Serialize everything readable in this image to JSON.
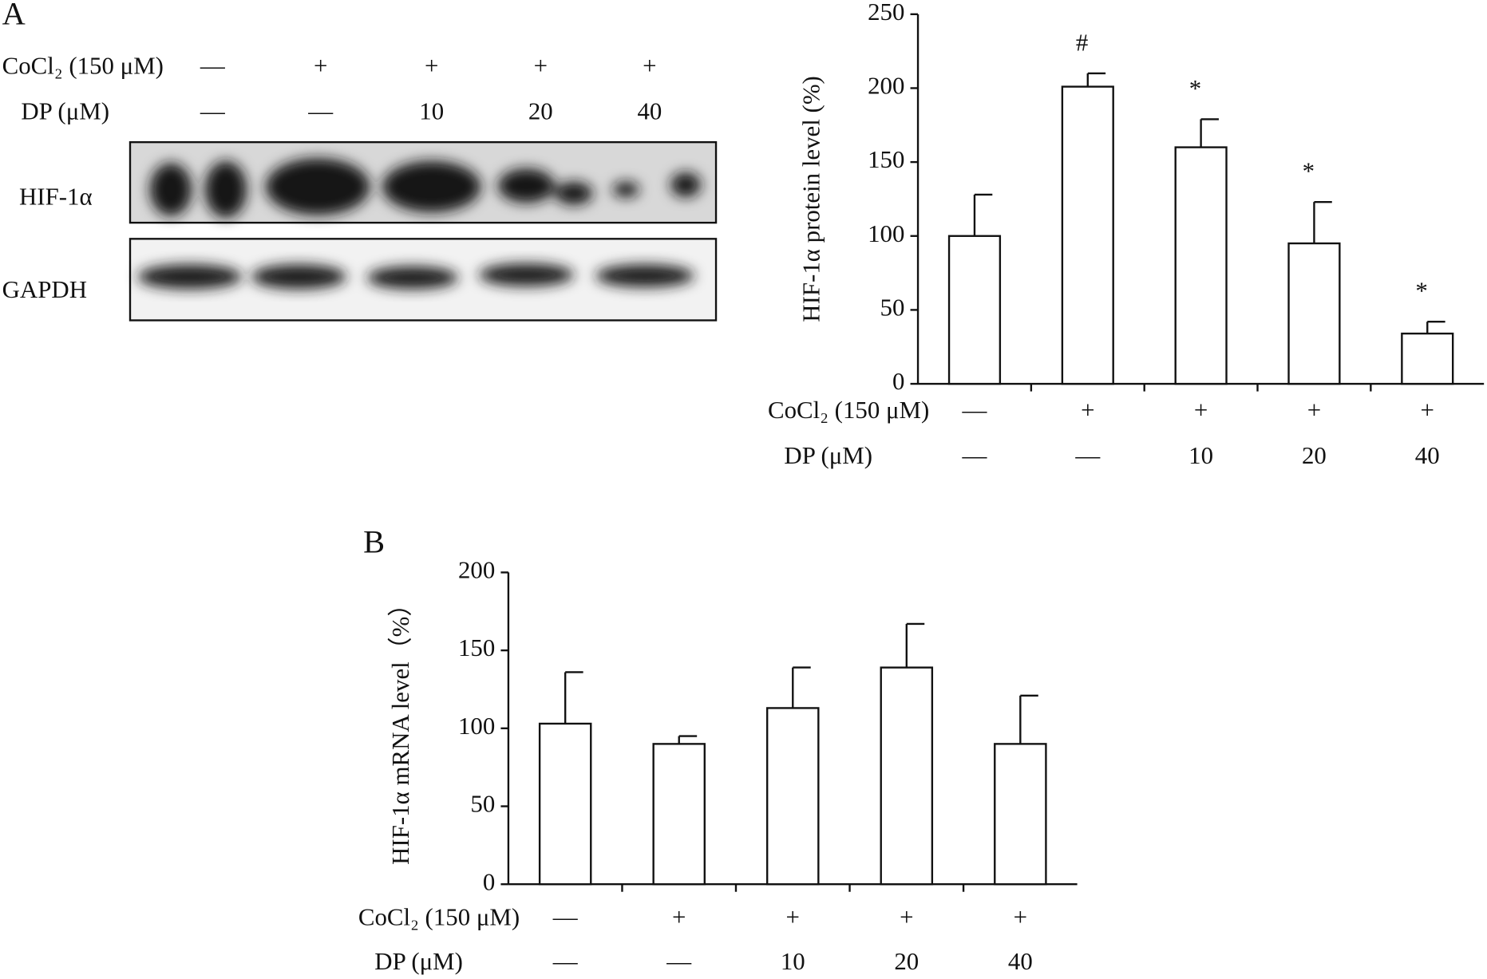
{
  "blot": {
    "panel_label": "A",
    "rows": [
      {
        "label": "CoCl₂ (150 μM)",
        "values": [
          "—",
          "+",
          "+",
          "+",
          "+"
        ]
      },
      {
        "label": "DP (μM)",
        "values": [
          "—",
          "—",
          "10",
          "20",
          "40"
        ]
      }
    ],
    "bands": [
      "HIF-1α",
      "GAPDH"
    ]
  },
  "chart_data": [
    {
      "type": "bar",
      "y_label": "HIF-1α protein level (%)",
      "values": [
        100,
        201,
        160,
        95,
        34
      ],
      "errors": [
        28,
        9,
        19,
        28,
        8
      ],
      "markers": [
        null,
        "#",
        "*",
        "*",
        "*"
      ],
      "rows": [
        {
          "label": "CoCl₂ (150 μM)",
          "values": [
            "—",
            "+",
            "+",
            "+",
            "+"
          ]
        },
        {
          "label": "DP (μM)",
          "values": [
            "—",
            "—",
            "10",
            "20",
            "40"
          ]
        }
      ],
      "ylim": [
        0,
        250
      ],
      "yticks": [
        0,
        50,
        100,
        150,
        200,
        250
      ],
      "color": "#ffffff"
    },
    {
      "type": "bar",
      "panel_label": "B",
      "y_label": "HIF-1α mRNA level（%）",
      "values": [
        103,
        90,
        113,
        139,
        90
      ],
      "errors": [
        33,
        5,
        26,
        28,
        31
      ],
      "rows": [
        {
          "label": "CoCl₂ (150 μM)",
          "values": [
            "—",
            "+",
            "+",
            "+",
            "+"
          ]
        },
        {
          "label": "DP (μM)",
          "values": [
            "—",
            "—",
            "10",
            "20",
            "40"
          ]
        }
      ],
      "ylim": [
        0,
        200
      ],
      "yticks": [
        0,
        50,
        100,
        150,
        200
      ],
      "color": "#ffffff"
    }
  ]
}
